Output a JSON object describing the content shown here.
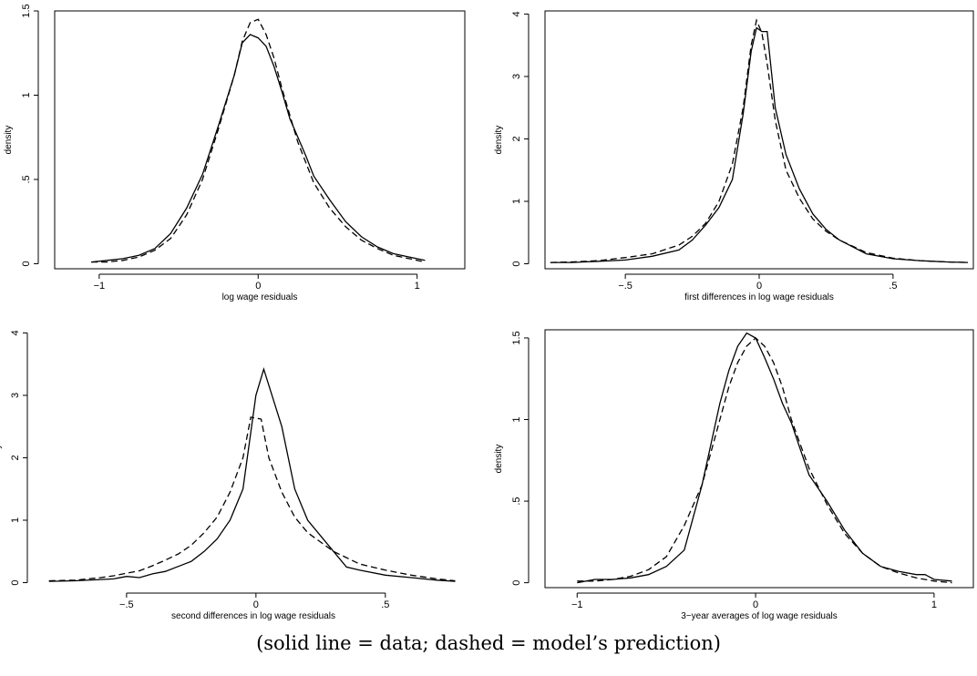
{
  "caption": "(solid line = data; dashed = model’s prediction)",
  "chart_data": [
    {
      "type": "line",
      "xlabel": "log wage residuals",
      "ylabel": "density",
      "xticks": [
        {
          "value": -1,
          "label": "−1"
        },
        {
          "value": 0,
          "label": "0"
        },
        {
          "value": 1,
          "label": "1"
        }
      ],
      "yticks": [
        {
          "value": 0,
          "label": "0"
        },
        {
          "value": 0.5,
          "label": ".5"
        },
        {
          "value": 1,
          "label": "1"
        },
        {
          "value": 1.5,
          "label": "1.5"
        }
      ],
      "xlim": [
        -1.28,
        1.3
      ],
      "ylim": [
        -0.03,
        1.5
      ],
      "series": [
        {
          "style": "solid",
          "x": [
            -1.05,
            -0.95,
            -0.85,
            -0.75,
            -0.65,
            -0.55,
            -0.45,
            -0.35,
            -0.25,
            -0.15,
            -0.1,
            -0.05,
            0,
            0.05,
            0.1,
            0.15,
            0.2,
            0.25,
            0.3,
            0.35,
            0.45,
            0.55,
            0.65,
            0.75,
            0.85,
            0.95,
            1.05
          ],
          "y": [
            0.01,
            0.02,
            0.03,
            0.05,
            0.09,
            0.18,
            0.33,
            0.53,
            0.82,
            1.12,
            1.31,
            1.36,
            1.34,
            1.29,
            1.17,
            1.02,
            0.86,
            0.75,
            0.64,
            0.52,
            0.38,
            0.25,
            0.16,
            0.1,
            0.06,
            0.04,
            0.02
          ]
        },
        {
          "style": "dashed",
          "x": [
            -1.05,
            -0.95,
            -0.85,
            -0.75,
            -0.65,
            -0.55,
            -0.45,
            -0.35,
            -0.25,
            -0.15,
            -0.1,
            -0.05,
            0,
            0.05,
            0.1,
            0.15,
            0.2,
            0.25,
            0.3,
            0.35,
            0.45,
            0.55,
            0.65,
            0.75,
            0.85,
            0.95,
            1.05
          ],
          "y": [
            0.01,
            0.01,
            0.02,
            0.04,
            0.08,
            0.15,
            0.29,
            0.5,
            0.8,
            1.12,
            1.32,
            1.43,
            1.45,
            1.36,
            1.22,
            1.04,
            0.88,
            0.72,
            0.6,
            0.48,
            0.33,
            0.22,
            0.14,
            0.09,
            0.05,
            0.03,
            0.01
          ]
        }
      ]
    },
    {
      "type": "line",
      "xlabel": "first differences in log wage residuals",
      "ylabel": "density",
      "xticks": [
        {
          "value": -0.5,
          "label": "−.5"
        },
        {
          "value": 0,
          "label": "0"
        },
        {
          "value": 0.5,
          "label": ".5"
        }
      ],
      "yticks": [
        {
          "value": 0,
          "label": "0"
        },
        {
          "value": 1,
          "label": "1"
        },
        {
          "value": 2,
          "label": "2"
        },
        {
          "value": 3,
          "label": "3"
        },
        {
          "value": 4,
          "label": "4"
        }
      ],
      "xlim": [
        -0.8,
        0.8
      ],
      "ylim": [
        -0.08,
        4.05
      ],
      "series": [
        {
          "style": "solid",
          "x": [
            -0.78,
            -0.7,
            -0.6,
            -0.5,
            -0.4,
            -0.3,
            -0.25,
            -0.2,
            -0.15,
            -0.1,
            -0.06,
            -0.03,
            -0.01,
            0.01,
            0.03,
            0.06,
            0.1,
            0.15,
            0.2,
            0.25,
            0.3,
            0.4,
            0.5,
            0.6,
            0.7,
            0.78
          ],
          "y": [
            0.02,
            0.02,
            0.04,
            0.06,
            0.12,
            0.22,
            0.38,
            0.62,
            0.9,
            1.35,
            2.4,
            3.4,
            3.78,
            3.72,
            3.72,
            2.5,
            1.75,
            1.2,
            0.8,
            0.55,
            0.38,
            0.16,
            0.08,
            0.05,
            0.03,
            0.02
          ]
        },
        {
          "style": "dashed",
          "x": [
            -0.78,
            -0.7,
            -0.6,
            -0.5,
            -0.4,
            -0.3,
            -0.25,
            -0.2,
            -0.15,
            -0.1,
            -0.06,
            -0.03,
            -0.01,
            0.01,
            0.03,
            0.06,
            0.1,
            0.15,
            0.2,
            0.25,
            0.3,
            0.4,
            0.5,
            0.6,
            0.7,
            0.78
          ],
          "y": [
            0.02,
            0.03,
            0.05,
            0.1,
            0.16,
            0.3,
            0.44,
            0.65,
            1.0,
            1.6,
            2.5,
            3.5,
            3.9,
            3.7,
            3.2,
            2.3,
            1.5,
            1.05,
            0.72,
            0.52,
            0.38,
            0.18,
            0.09,
            0.05,
            0.03,
            0.02
          ]
        }
      ]
    },
    {
      "type": "line",
      "xlabel": "second differences in log wage residuals",
      "ylabel": "density",
      "xticks": [
        {
          "value": -0.5,
          "label": "−.5"
        },
        {
          "value": 0,
          "label": "0"
        },
        {
          "value": 0.5,
          "label": ".5"
        }
      ],
      "yticks": [
        {
          "value": 0,
          "label": "0"
        },
        {
          "value": 1,
          "label": "1"
        },
        {
          "value": 2,
          "label": "2"
        },
        {
          "value": 3,
          "label": "3"
        },
        {
          "value": 4,
          "label": "4"
        }
      ],
      "xlim": [
        -0.82,
        0.8
      ],
      "ylim": [
        -0.08,
        4.05
      ],
      "series": [
        {
          "style": "solid",
          "x": [
            -0.8,
            -0.7,
            -0.6,
            -0.55,
            -0.5,
            -0.45,
            -0.4,
            -0.35,
            -0.3,
            -0.25,
            -0.2,
            -0.15,
            -0.1,
            -0.05,
            0,
            0.03,
            0.1,
            0.15,
            0.2,
            0.3,
            0.35,
            0.4,
            0.5,
            0.6,
            0.7,
            0.77
          ],
          "y": [
            0.02,
            0.03,
            0.05,
            0.06,
            0.1,
            0.08,
            0.14,
            0.18,
            0.26,
            0.34,
            0.5,
            0.7,
            1.0,
            1.5,
            3.0,
            3.42,
            2.5,
            1.5,
            1.0,
            0.5,
            0.25,
            0.2,
            0.12,
            0.08,
            0.04,
            0.02
          ]
        },
        {
          "style": "dashed",
          "x": [
            -0.8,
            -0.7,
            -0.6,
            -0.55,
            -0.5,
            -0.45,
            -0.4,
            -0.35,
            -0.3,
            -0.25,
            -0.2,
            -0.15,
            -0.1,
            -0.05,
            -0.02,
            0.02,
            0.05,
            0.1,
            0.15,
            0.2,
            0.3,
            0.4,
            0.5,
            0.6,
            0.7,
            0.77
          ],
          "y": [
            0.03,
            0.04,
            0.08,
            0.11,
            0.15,
            0.19,
            0.27,
            0.36,
            0.46,
            0.6,
            0.8,
            1.05,
            1.45,
            2.0,
            2.65,
            2.62,
            2.0,
            1.45,
            1.05,
            0.8,
            0.5,
            0.3,
            0.2,
            0.12,
            0.06,
            0.03
          ]
        }
      ]
    },
    {
      "type": "line",
      "xlabel": "3−year averages of log wage residuals",
      "ylabel": "density",
      "xticks": [
        {
          "value": -1,
          "label": "−1"
        },
        {
          "value": 0,
          "label": "0"
        },
        {
          "value": 1,
          "label": "1"
        }
      ],
      "yticks": [
        {
          "value": 0,
          "label": "0"
        },
        {
          "value": 0.5,
          "label": ".5"
        },
        {
          "value": 1,
          "label": "1"
        },
        {
          "value": 1.5,
          "label": "1.5"
        }
      ],
      "xlim": [
        -1.18,
        1.22
      ],
      "ylim": [
        -0.03,
        1.55
      ],
      "series": [
        {
          "style": "solid",
          "x": [
            -1.0,
            -0.9,
            -0.8,
            -0.7,
            -0.6,
            -0.5,
            -0.4,
            -0.3,
            -0.25,
            -0.2,
            -0.15,
            -0.1,
            -0.05,
            0,
            0.05,
            0.1,
            0.15,
            0.2,
            0.25,
            0.3,
            0.4,
            0.5,
            0.6,
            0.7,
            0.8,
            0.9,
            0.95,
            1.0,
            1.1
          ],
          "y": [
            0.0,
            0.02,
            0.02,
            0.03,
            0.05,
            0.1,
            0.2,
            0.6,
            0.85,
            1.1,
            1.3,
            1.45,
            1.53,
            1.5,
            1.38,
            1.25,
            1.1,
            0.98,
            0.82,
            0.66,
            0.5,
            0.32,
            0.18,
            0.1,
            0.07,
            0.05,
            0.05,
            0.02,
            0.01
          ]
        },
        {
          "style": "dashed",
          "x": [
            -1.0,
            -0.9,
            -0.8,
            -0.7,
            -0.6,
            -0.5,
            -0.4,
            -0.3,
            -0.25,
            -0.2,
            -0.15,
            -0.1,
            -0.05,
            0,
            0.05,
            0.1,
            0.15,
            0.2,
            0.25,
            0.3,
            0.4,
            0.5,
            0.6,
            0.7,
            0.8,
            0.9,
            1.0,
            1.1
          ],
          "y": [
            0.01,
            0.01,
            0.02,
            0.04,
            0.08,
            0.16,
            0.35,
            0.6,
            0.8,
            1.0,
            1.2,
            1.35,
            1.45,
            1.5,
            1.45,
            1.35,
            1.2,
            1.0,
            0.85,
            0.7,
            0.48,
            0.3,
            0.18,
            0.1,
            0.06,
            0.03,
            0.01,
            0.0
          ]
        }
      ]
    }
  ]
}
